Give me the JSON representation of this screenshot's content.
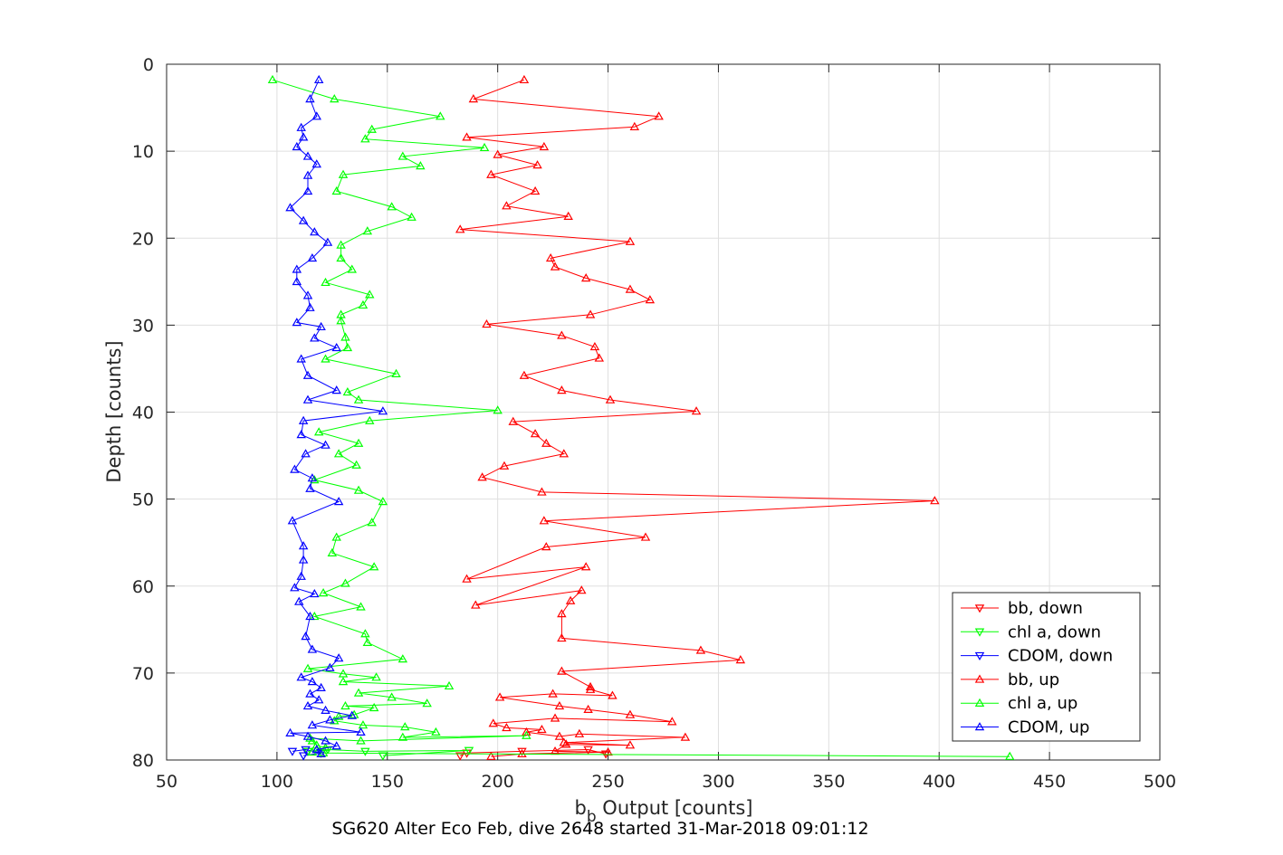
{
  "chart_data": {
    "type": "line",
    "xlabel_main": "b",
    "xlabel_sub": "b",
    "xlabel_rest": " Output [counts]",
    "ylabel": "Depth [counts]",
    "caption": "SG620 Alter Eco Feb, dive 2648 started 31-Mar-2018 09:01:12",
    "xlim": [
      50,
      500
    ],
    "ylim": [
      0,
      80
    ],
    "y_reversed": true,
    "grid": true,
    "legend_position": "bottom-right",
    "xticks": [
      "50",
      "100",
      "150",
      "200",
      "250",
      "300",
      "350",
      "400",
      "450",
      "500"
    ],
    "yticks": [
      "0",
      "10",
      "20",
      "30",
      "40",
      "50",
      "60",
      "70",
      "80"
    ],
    "series": [
      {
        "name": "bb, down",
        "color": "#ff0000",
        "marker": "triangle-down",
        "points": [
          [
            183,
            79.5
          ],
          [
            186,
            79.2
          ],
          [
            211,
            79.0
          ],
          [
            241,
            78.8
          ],
          [
            249,
            79.3
          ]
        ]
      },
      {
        "name": "chl a, down",
        "color": "#00ff00",
        "marker": "triangle-down",
        "points": [
          [
            114,
            79.0
          ],
          [
            123,
            78.8
          ],
          [
            140,
            79.0
          ],
          [
            187,
            78.9
          ],
          [
            148,
            79.5
          ]
        ]
      },
      {
        "name": "CDOM, down",
        "color": "#0000ff",
        "marker": "triangle-down",
        "points": [
          [
            107,
            79.0
          ],
          [
            113,
            78.8
          ],
          [
            120,
            79.2
          ],
          [
            112,
            79.5
          ]
        ]
      },
      {
        "name": "bb, up",
        "color": "#ff0000",
        "marker": "triangle-up",
        "points": [
          [
            197,
            79.6
          ],
          [
            211,
            79.3
          ],
          [
            250,
            79.1
          ],
          [
            226,
            79.0
          ],
          [
            231,
            78.2
          ],
          [
            260,
            78.3
          ],
          [
            230,
            78.0
          ],
          [
            285,
            77.4
          ],
          [
            237,
            77.0
          ],
          [
            228,
            77.3
          ],
          [
            213,
            76.8
          ],
          [
            220,
            76.5
          ],
          [
            204,
            76.3
          ],
          [
            198,
            75.8
          ],
          [
            226,
            75.2
          ],
          [
            279,
            75.6
          ],
          [
            260,
            74.8
          ],
          [
            241,
            74.2
          ],
          [
            228,
            73.8
          ],
          [
            201,
            72.8
          ],
          [
            225,
            72.4
          ],
          [
            252,
            72.6
          ],
          [
            242,
            71.9
          ],
          [
            242,
            71.6
          ],
          [
            229,
            69.8
          ],
          [
            310,
            68.5
          ],
          [
            292,
            67.4
          ],
          [
            229,
            66.0
          ],
          [
            229,
            63.2
          ],
          [
            233,
            61.7
          ],
          [
            238,
            60.5
          ],
          [
            190,
            62.2
          ],
          [
            240,
            57.8
          ],
          [
            186,
            59.2
          ],
          [
            222,
            55.5
          ],
          [
            267,
            54.4
          ],
          [
            221,
            52.5
          ],
          [
            398,
            50.2
          ],
          [
            220,
            49.2
          ],
          [
            193,
            47.5
          ],
          [
            203,
            46.2
          ],
          [
            230,
            44.8
          ],
          [
            222,
            43.6
          ],
          [
            217,
            42.5
          ],
          [
            207,
            41.1
          ],
          [
            290,
            39.9
          ],
          [
            251,
            38.6
          ],
          [
            229,
            37.5
          ],
          [
            212,
            35.8
          ],
          [
            246,
            33.8
          ],
          [
            244,
            32.5
          ],
          [
            229,
            31.2
          ],
          [
            195,
            29.9
          ],
          [
            242,
            28.8
          ],
          [
            269,
            27.1
          ],
          [
            260,
            25.9
          ],
          [
            240,
            24.6
          ],
          [
            226,
            23.3
          ],
          [
            224,
            22.3
          ],
          [
            260,
            20.4
          ],
          [
            183,
            19.0
          ],
          [
            232,
            17.5
          ],
          [
            204,
            16.3
          ],
          [
            217,
            14.6
          ],
          [
            197,
            12.7
          ],
          [
            218,
            11.6
          ],
          [
            200,
            10.4
          ],
          [
            221,
            9.5
          ],
          [
            186,
            8.4
          ],
          [
            262,
            7.2
          ],
          [
            273,
            6.0
          ],
          [
            189,
            4.0
          ],
          [
            212,
            1.8
          ]
        ]
      },
      {
        "name": "chl a, up",
        "color": "#00ff00",
        "marker": "triangle-up",
        "points": [
          [
            432,
            79.6
          ],
          [
            121,
            79.2
          ],
          [
            116,
            79.1
          ],
          [
            122,
            78.6
          ],
          [
            118,
            78.3
          ],
          [
            116,
            77.8
          ],
          [
            115,
            77.5
          ],
          [
            138,
            77.8
          ],
          [
            213,
            77.2
          ],
          [
            157,
            77.4
          ],
          [
            172,
            76.8
          ],
          [
            158,
            76.2
          ],
          [
            139,
            76.0
          ],
          [
            126,
            75.5
          ],
          [
            128,
            75.0
          ],
          [
            135,
            74.8
          ],
          [
            144,
            74.0
          ],
          [
            131,
            73.8
          ],
          [
            168,
            73.5
          ],
          [
            152,
            72.8
          ],
          [
            137,
            72.3
          ],
          [
            178,
            71.5
          ],
          [
            130,
            71.0
          ],
          [
            145,
            70.5
          ],
          [
            130,
            70.1
          ],
          [
            114,
            69.5
          ],
          [
            157,
            68.4
          ],
          [
            141,
            66.5
          ],
          [
            140,
            65.5
          ],
          [
            117,
            63.5
          ],
          [
            138,
            62.4
          ],
          [
            121,
            60.8
          ],
          [
            131,
            59.7
          ],
          [
            144,
            57.8
          ],
          [
            125,
            56.2
          ],
          [
            127,
            54.4
          ],
          [
            143,
            52.7
          ],
          [
            148,
            50.3
          ],
          [
            137,
            49.0
          ],
          [
            117,
            47.8
          ],
          [
            136,
            46.1
          ],
          [
            128,
            44.8
          ],
          [
            137,
            43.6
          ],
          [
            119,
            42.3
          ],
          [
            142,
            41.0
          ],
          [
            200,
            39.8
          ],
          [
            137,
            38.6
          ],
          [
            132,
            37.7
          ],
          [
            154,
            35.6
          ],
          [
            122,
            33.9
          ],
          [
            132,
            32.6
          ],
          [
            131,
            31.4
          ],
          [
            129,
            29.5
          ],
          [
            129,
            28.8
          ],
          [
            139,
            27.7
          ],
          [
            142,
            26.5
          ],
          [
            122,
            25.1
          ],
          [
            134,
            23.6
          ],
          [
            129,
            22.3
          ],
          [
            129,
            20.8
          ],
          [
            141,
            19.2
          ],
          [
            161,
            17.6
          ],
          [
            152,
            16.4
          ],
          [
            127,
            14.6
          ],
          [
            130,
            12.7
          ],
          [
            165,
            11.7
          ],
          [
            157,
            10.6
          ],
          [
            194,
            9.6
          ],
          [
            140,
            8.6
          ],
          [
            143,
            7.5
          ],
          [
            174,
            6.0
          ],
          [
            126,
            4.0
          ],
          [
            98,
            1.8
          ]
        ]
      },
      {
        "name": "CDOM, up",
        "color": "#0000ff",
        "marker": "triangle-up",
        "points": [
          [
            120,
            79.3
          ],
          [
            118,
            78.8
          ],
          [
            127,
            78.4
          ],
          [
            122,
            77.8
          ],
          [
            114,
            77.3
          ],
          [
            106,
            76.9
          ],
          [
            138,
            76.8
          ],
          [
            116,
            76.0
          ],
          [
            124,
            75.4
          ],
          [
            134,
            74.9
          ],
          [
            122,
            74.3
          ],
          [
            114,
            73.8
          ],
          [
            119,
            73.1
          ],
          [
            115,
            72.4
          ],
          [
            120,
            71.7
          ],
          [
            116,
            71.0
          ],
          [
            111,
            70.5
          ],
          [
            124,
            69.4
          ],
          [
            128,
            68.3
          ],
          [
            116,
            67.3
          ],
          [
            113,
            65.8
          ],
          [
            115,
            63.5
          ],
          [
            110,
            61.8
          ],
          [
            117,
            60.9
          ],
          [
            108,
            60.2
          ],
          [
            111,
            58.9
          ],
          [
            112,
            57.0
          ],
          [
            112,
            55.4
          ],
          [
            107,
            52.5
          ],
          [
            128,
            50.3
          ],
          [
            115,
            48.8
          ],
          [
            116,
            47.6
          ],
          [
            108,
            46.6
          ],
          [
            113,
            44.8
          ],
          [
            122,
            43.8
          ],
          [
            111,
            42.6
          ],
          [
            112,
            41.0
          ],
          [
            148,
            39.9
          ],
          [
            114,
            38.6
          ],
          [
            127,
            37.5
          ],
          [
            114,
            35.8
          ],
          [
            111,
            33.9
          ],
          [
            127,
            32.6
          ],
          [
            117,
            31.5
          ],
          [
            120,
            30.2
          ],
          [
            109,
            29.7
          ],
          [
            115,
            28.0
          ],
          [
            114,
            26.6
          ],
          [
            109,
            25.0
          ],
          [
            109,
            23.6
          ],
          [
            116,
            22.3
          ],
          [
            123,
            20.5
          ],
          [
            117,
            19.3
          ],
          [
            112,
            18.0
          ],
          [
            106,
            16.5
          ],
          [
            114,
            14.6
          ],
          [
            114,
            12.8
          ],
          [
            118,
            11.5
          ],
          [
            114,
            10.6
          ],
          [
            109,
            9.5
          ],
          [
            112,
            8.4
          ],
          [
            111,
            7.3
          ],
          [
            118,
            6.0
          ],
          [
            115,
            4.0
          ],
          [
            119,
            1.8
          ]
        ]
      }
    ]
  }
}
